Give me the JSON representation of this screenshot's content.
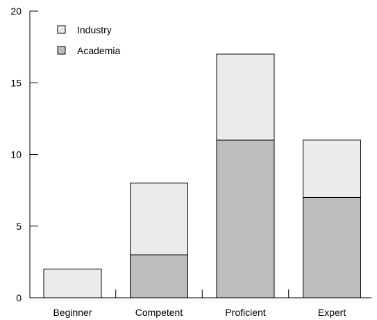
{
  "chart_data": {
    "type": "bar",
    "stacked": true,
    "categories": [
      "Beginner",
      "Competent",
      "Proficient",
      "Expert"
    ],
    "series": [
      {
        "name": "Academia",
        "values": [
          0,
          3,
          11,
          7
        ],
        "color": "#bdbdbd"
      },
      {
        "name": "Industry",
        "values": [
          2,
          5,
          6,
          4
        ],
        "color": "#ebebeb"
      }
    ],
    "legend_order": [
      "Industry",
      "Academia"
    ],
    "legend_position": "top-left",
    "title": "",
    "xlabel": "",
    "ylabel": "",
    "ylim": [
      0,
      20
    ],
    "yticks": [
      0,
      5,
      10,
      15,
      20
    ],
    "grid": false
  }
}
